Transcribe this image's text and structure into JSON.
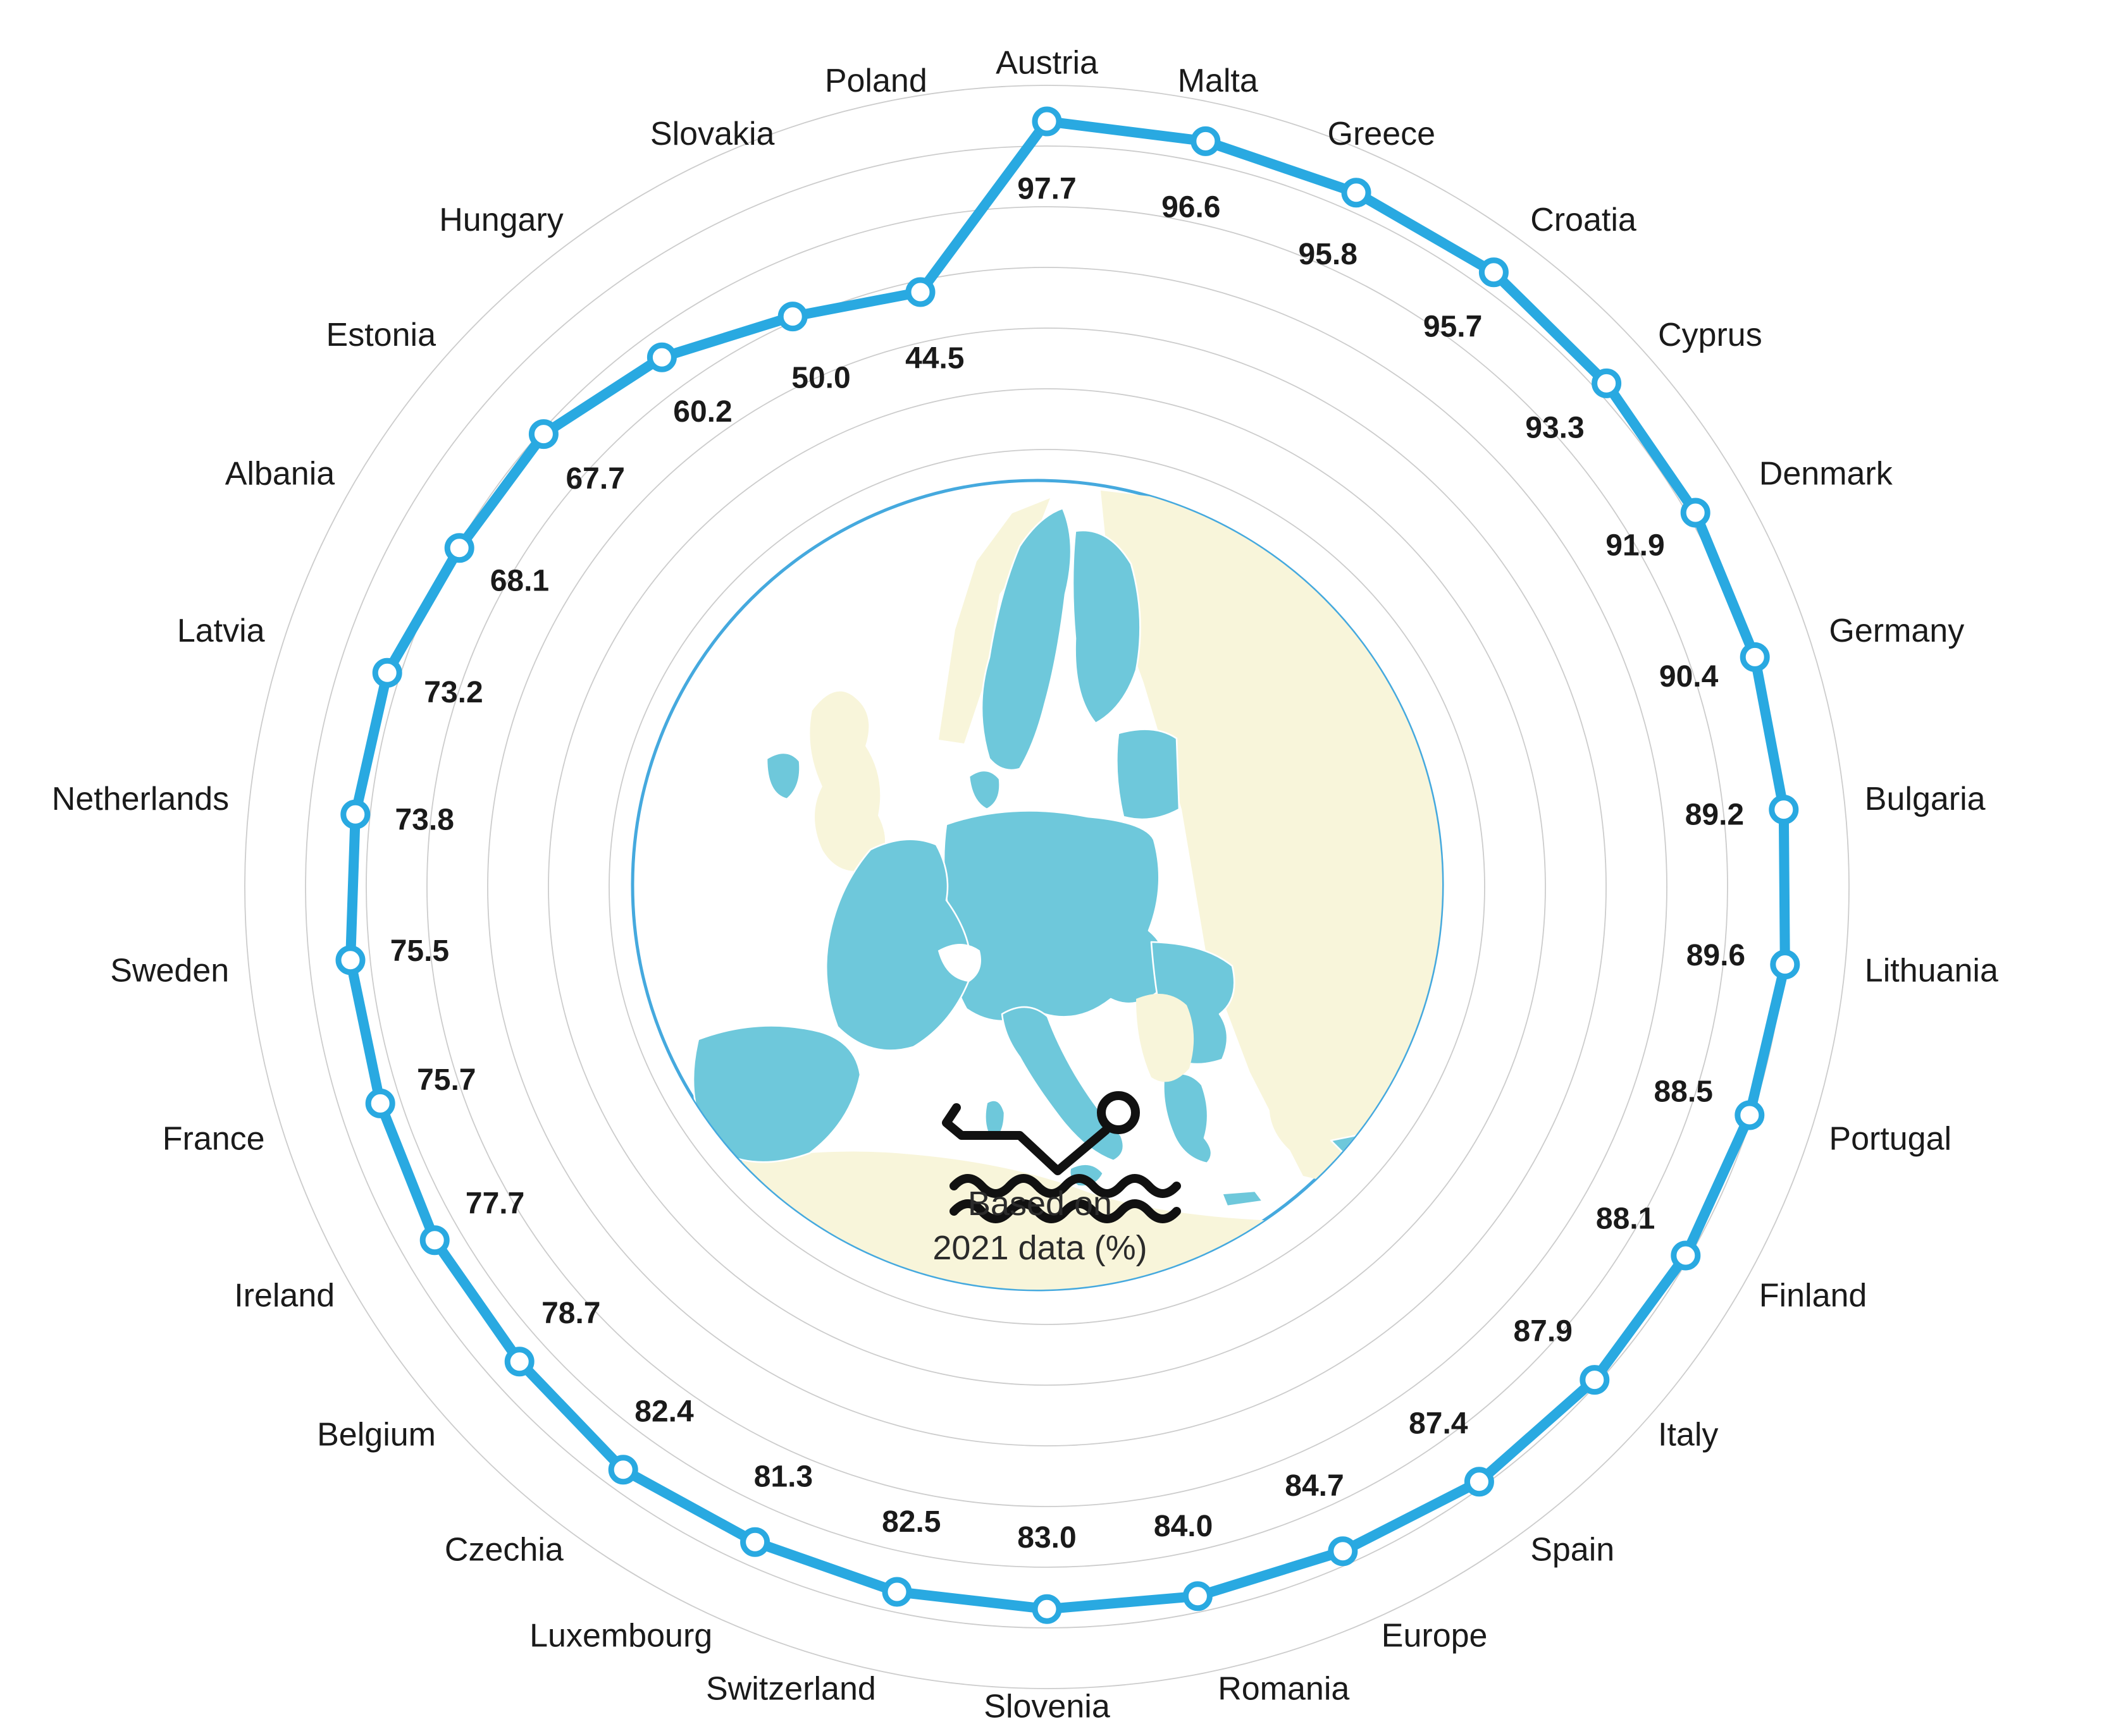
{
  "colors": {
    "line": "#29a9e1",
    "marker_fill": "#ffffff",
    "map_eu": "#6ec8db",
    "map_non_eu": "#f8f5da",
    "map_sea": "#ffffff",
    "map_circle_stroke": "#45a9de",
    "grid": "#cccccc",
    "label_text": "#1a1a1a",
    "caption_text": "#2b2b2b",
    "icon": "#111111",
    "background": "#ffffff"
  },
  "icons": {
    "center": "swimmer-icon"
  },
  "center_caption": {
    "line1": "Based on",
    "line2": "2021 data (%)"
  },
  "chart_data": {
    "type": "line",
    "subtype": "radial-polar",
    "title": "",
    "unit": "%",
    "direction": "clockwise",
    "start_position": "top",
    "angular_step_deg": 12,
    "r_axis": {
      "min": 0,
      "max": 100,
      "gridlines": "concentric-circles",
      "tick_labels_shown": false
    },
    "legend": {
      "shown": false
    },
    "categories": [
      "Austria",
      "Malta",
      "Greece",
      "Croatia",
      "Cyprus",
      "Denmark",
      "Germany",
      "Bulgaria",
      "Lithuania",
      "Portugal",
      "Finland",
      "Italy",
      "Spain",
      "Europe",
      "Romania",
      "Slovenia",
      "Switzerland",
      "Luxembourg",
      "Czechia",
      "Belgium",
      "Ireland",
      "France",
      "Sweden",
      "Netherlands",
      "Latvia",
      "Albania",
      "Estonia",
      "Hungary",
      "Slovakia",
      "Poland"
    ],
    "values": [
      97.7,
      96.6,
      95.8,
      95.7,
      93.3,
      91.9,
      90.4,
      89.2,
      89.6,
      88.5,
      88.1,
      87.9,
      87.4,
      84.7,
      84.0,
      83.0,
      82.5,
      81.3,
      82.4,
      78.7,
      77.7,
      75.7,
      75.5,
      73.8,
      73.2,
      68.1,
      67.7,
      60.2,
      50.0,
      44.5
    ]
  }
}
